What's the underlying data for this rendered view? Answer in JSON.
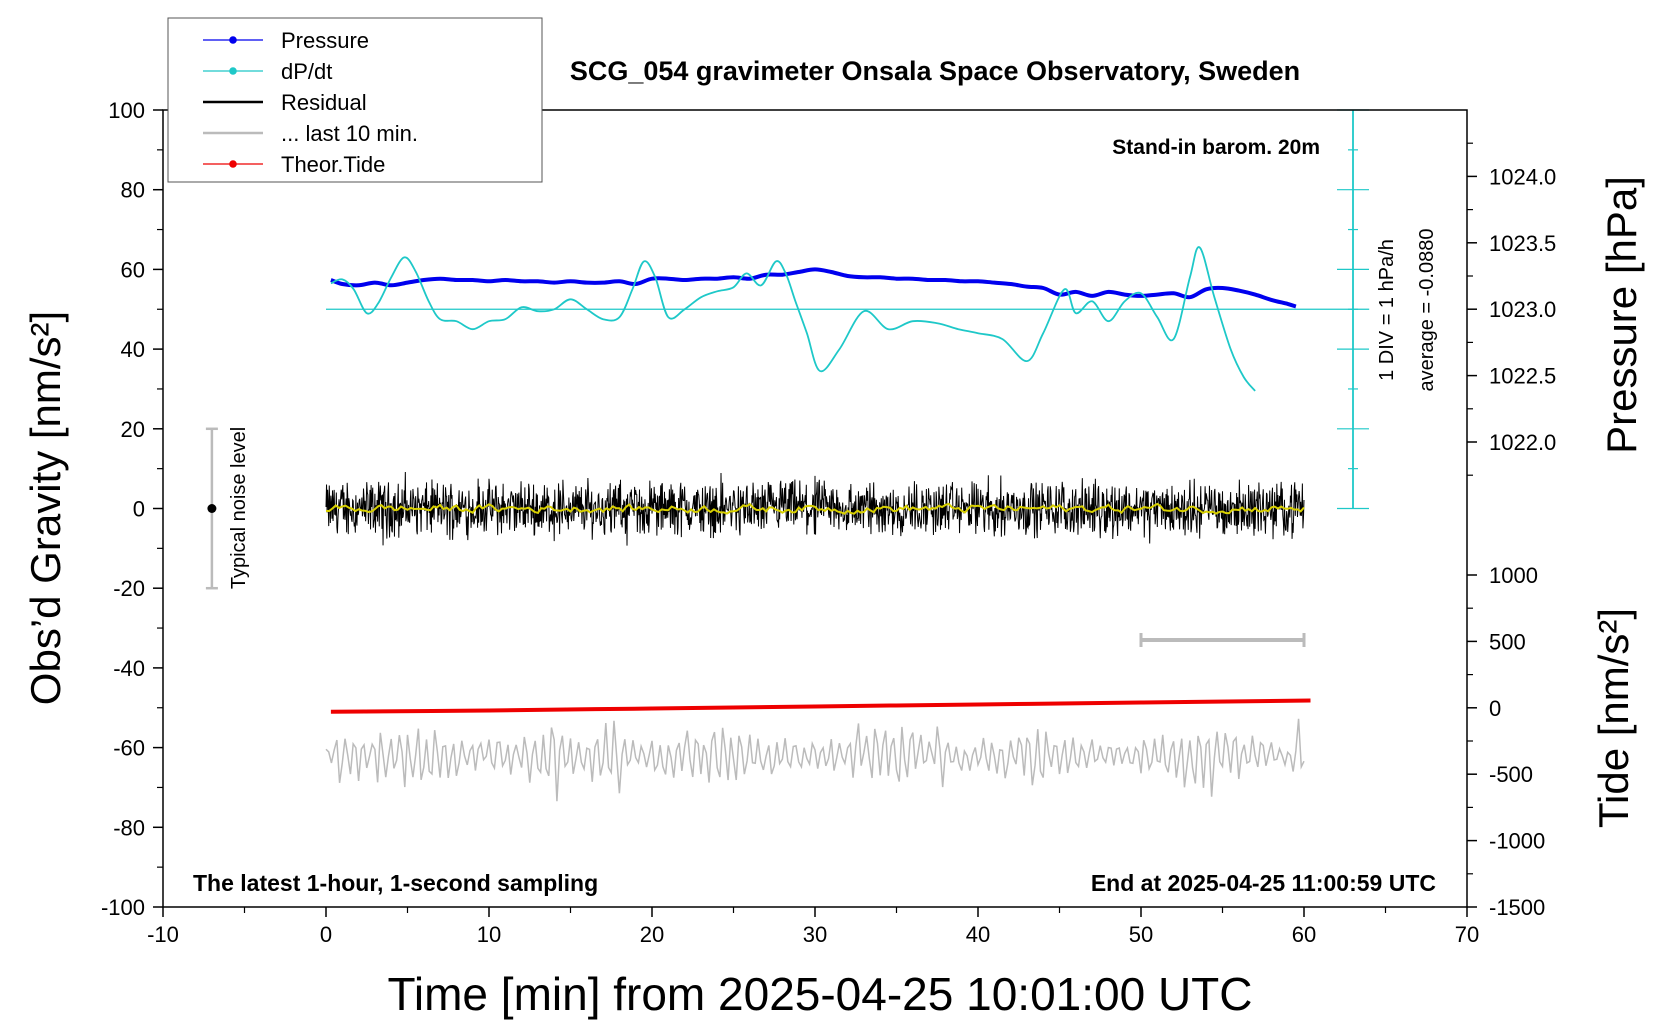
{
  "chart_data": {
    "type": "line",
    "title": "SCG_054 gravimeter Onsala Space Observatory, Sweden",
    "xlabel": "Time [min] from 2025-04-25 10:01:00 UTC",
    "ylabel_left": "Obs’d Gravity [nm/s²]",
    "ylabel_right_top": "Pressure [hPa]",
    "ylabel_right_bottom": "Tide [nm/s²]",
    "xlim": [
      -10,
      70
    ],
    "ylim": [
      -100,
      100
    ],
    "pressure_lim": [
      1021.5,
      1024.5
    ],
    "tide_lim": [
      -1500,
      1000
    ],
    "x_ticks": [
      "-10",
      "0",
      "10",
      "20",
      "30",
      "40",
      "50",
      "60",
      "70"
    ],
    "y_ticks": [
      "100",
      "80",
      "60",
      "40",
      "20",
      "0",
      "-20",
      "-40",
      "-60",
      "-80",
      "-100"
    ],
    "pressure_ticks": [
      "1024.0",
      "1023.5",
      "1023.0",
      "1022.5",
      "1022.0"
    ],
    "tide_ticks": [
      "1000",
      "500",
      "0",
      "-500",
      "-1000",
      "-1500"
    ],
    "grid": false,
    "legend_position": "top-left",
    "legend": [
      {
        "label": "Pressure",
        "color": "#0000ee",
        "marker": true
      },
      {
        "label": "dP/dt",
        "color": "#1ec8c8",
        "marker": true
      },
      {
        "label": "Residual",
        "color": "#000000",
        "marker": false
      },
      {
        "label": "... last 10 min.",
        "color": "#bbbbbb",
        "marker": false
      },
      {
        "label": "Theor.Tide",
        "color": "#ee0000",
        "marker": true
      }
    ],
    "annotations": {
      "top_right": "Stand-in barom. 20m",
      "bottom_left": "The latest 1-hour, 1-second sampling",
      "bottom_right": "End at 2025-04-25 11:00:59 UTC",
      "noise": "Typical noise level",
      "dpdt_div": "1 DIV = 1 hPa/h",
      "dpdt_avg": "average = -0.0880"
    },
    "series": [
      {
        "name": "Pressure",
        "color": "#0000ee",
        "axis": "pressure",
        "x": [
          0.3,
          1,
          2,
          3,
          4,
          5,
          6,
          7,
          8,
          9,
          10,
          11,
          12,
          13,
          14,
          15,
          16,
          17,
          18,
          19,
          20,
          21,
          22,
          23,
          24,
          25,
          26,
          27,
          28,
          29,
          30,
          31,
          32,
          33,
          34,
          35,
          36,
          37,
          38,
          39,
          40,
          41,
          42,
          43,
          44,
          45,
          46,
          47,
          48,
          49,
          50,
          51,
          52,
          53,
          54,
          55,
          56,
          57,
          58,
          59,
          59.5
        ],
        "y": [
          1023.22,
          1023.19,
          1023.18,
          1023.2,
          1023.18,
          1023.2,
          1023.22,
          1023.23,
          1023.22,
          1023.22,
          1023.21,
          1023.22,
          1023.21,
          1023.21,
          1023.2,
          1023.21,
          1023.2,
          1023.2,
          1023.21,
          1023.19,
          1023.23,
          1023.23,
          1023.22,
          1023.23,
          1023.23,
          1023.24,
          1023.23,
          1023.26,
          1023.26,
          1023.28,
          1023.3,
          1023.28,
          1023.25,
          1023.24,
          1023.24,
          1023.23,
          1023.23,
          1023.22,
          1023.22,
          1023.21,
          1023.21,
          1023.2,
          1023.19,
          1023.17,
          1023.16,
          1023.11,
          1023.13,
          1023.1,
          1023.13,
          1023.11,
          1023.1,
          1023.11,
          1023.12,
          1023.09,
          1023.15,
          1023.16,
          1023.14,
          1023.11,
          1023.07,
          1023.04,
          1023.02
        ]
      },
      {
        "name": "dP/dt",
        "color": "#1ec8c8",
        "axis": "gravity",
        "x": [
          0.3,
          1,
          1.7,
          2.5,
          3.2,
          4,
          4.8,
          5.5,
          6.3,
          7,
          8,
          9,
          10,
          11,
          12,
          13,
          14,
          15,
          16,
          17,
          18,
          18.8,
          19.5,
          20.2,
          21,
          22,
          23,
          24,
          25,
          25.8,
          26.7,
          27.6,
          28.2,
          28.8,
          29.5,
          30.3,
          31.5,
          33,
          34.5,
          36,
          37.5,
          38.8,
          40,
          41.5,
          43,
          44,
          45.3,
          46,
          47,
          48,
          49,
          50,
          51,
          52,
          53,
          53.6,
          54.5,
          55.5,
          56.3,
          57
        ],
        "y": [
          56.5,
          57.5,
          55,
          49,
          51.5,
          58,
          63,
          59.5,
          52,
          47.5,
          47,
          45,
          47,
          47.5,
          50.5,
          49.5,
          50,
          52.5,
          50,
          47.5,
          48,
          55,
          62,
          58,
          48,
          50,
          53,
          54.5,
          55.5,
          59,
          56,
          62,
          59,
          52,
          44,
          34.5,
          40,
          49.5,
          45,
          47,
          46.5,
          45,
          44,
          42.5,
          37,
          44,
          55,
          49,
          52,
          47,
          52,
          54,
          48,
          42.5,
          58,
          65.5,
          53,
          40,
          33,
          29.5
        ]
      },
      {
        "name": "Theor.Tide",
        "color": "#ee0000",
        "axis": "tide",
        "x": [
          0.3,
          10,
          20,
          30,
          40,
          50,
          60.4
        ],
        "y": [
          -30,
          -20,
          -5,
          10,
          25,
          40,
          55
        ]
      }
    ],
    "noise_bar": {
      "x": -7,
      "low": -20,
      "high": 20
    },
    "ten_min_bar": {
      "x0": 50,
      "x1": 60,
      "y": -33
    }
  }
}
